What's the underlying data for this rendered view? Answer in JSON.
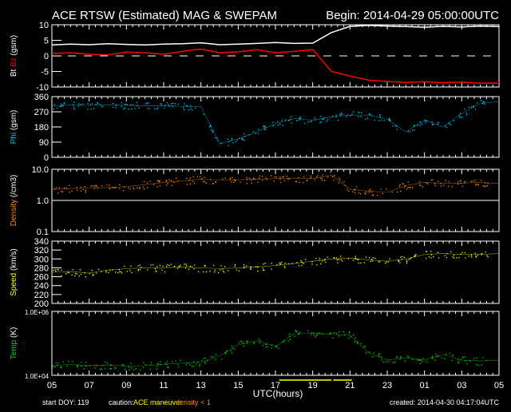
{
  "chart_data": {
    "type": "line",
    "title": "ACE RTSW (Estimated) MAG & SWEPAM",
    "begin": "Begin: 2014-04-29 05:00:00UTC",
    "xlabel": "UTC(hours)",
    "x_ticks": [
      "05",
      "07",
      "09",
      "11",
      "13",
      "15",
      "17",
      "19",
      "21",
      "23",
      "01",
      "03",
      "05"
    ],
    "x_hours": [
      5,
      6,
      7,
      8,
      9,
      10,
      11,
      12,
      13,
      14,
      15,
      16,
      17,
      18,
      19,
      20,
      21,
      22,
      23,
      24,
      25,
      26,
      27,
      28,
      29
    ],
    "footer": {
      "start_doy": "start DOY: 119",
      "caution": "caution:",
      "ace_maneuver": "ACE maneuver",
      "density_note": "density < 1",
      "created": "created: 2014-04-30 04:17:04UTC"
    },
    "colors": {
      "bt": "#ffffff",
      "bz": "#ff0000",
      "phi": "#00ccff",
      "density": "#ff8c00",
      "speed": "#ffff00",
      "temp": "#00dd00",
      "maneuver": "#ffff00"
    },
    "panels": [
      {
        "ylabel_parts": [
          "Bt",
          "Bz",
          "(gsm)"
        ],
        "scale": "linear",
        "ylim": [
          -10,
          10
        ],
        "y_ticks": [
          "10",
          "5",
          "0",
          "-5",
          "-10"
        ],
        "y_tick_values": [
          10,
          5,
          0,
          -5,
          -10
        ],
        "zero_line": true,
        "series": [
          {
            "name": "Bt",
            "values": [
              3.5,
              3.8,
              3.6,
              3.9,
              3.7,
              3.5,
              3.8,
              3.9,
              4.2,
              3.6,
              3.8,
              4.0,
              4.3,
              4.0,
              4.1,
              7.5,
              9.5,
              9.8,
              9.6,
              9.4,
              9.2,
              9.5,
              9.3,
              9.6,
              9.4
            ]
          },
          {
            "name": "Bz",
            "values": [
              0.8,
              1.0,
              0.5,
              0.3,
              1.2,
              1.0,
              0.5,
              1.5,
              2.2,
              1.0,
              1.3,
              2.0,
              1.0,
              1.5,
              2.0,
              -5,
              -6.5,
              -7.8,
              -8.2,
              -8.5,
              -8.3,
              -8.6,
              -8.4,
              -8.8,
              -8.7
            ]
          }
        ]
      },
      {
        "ylabel_parts": [
          "Phi",
          "(gsm)"
        ],
        "scale": "linear",
        "ylim": [
          0,
          360
        ],
        "y_ticks": [
          "360",
          "270",
          "180",
          "90",
          "0"
        ],
        "y_tick_values": [
          360,
          270,
          180,
          90,
          0
        ],
        "series": [
          {
            "name": "Phi",
            "values": [
              305,
              310,
              308,
              312,
              310,
              305,
              306,
              302,
              300,
              80,
              110,
              150,
              200,
              230,
              220,
              240,
              250,
              250,
              225,
              150,
              220,
              180,
              260,
              320,
              330
            ]
          }
        ]
      },
      {
        "ylabel_parts": [
          "Density",
          "(/cm3)"
        ],
        "scale": "log",
        "ylim": [
          0.1,
          10
        ],
        "y_ticks": [
          "10.0",
          "1.0",
          "0.1"
        ],
        "y_tick_values": [
          10,
          1,
          0.1
        ],
        "ref_line": 1,
        "series": [
          {
            "name": "Density",
            "values": [
              2.2,
              2.4,
              2.5,
              2.6,
              2.8,
              3.2,
              3.8,
              4.2,
              4.8,
              4.5,
              4.6,
              4.8,
              5.0,
              5.2,
              5.0,
              6.5,
              2.3,
              2.0,
              1.8,
              3.0,
              3.8,
              3.5,
              3.6,
              3.8,
              3.5
            ]
          }
        ]
      },
      {
        "ylabel_parts": [
          "Speed",
          "(km/s)"
        ],
        "scale": "linear",
        "ylim": [
          200,
          340
        ],
        "y_ticks": [
          "340",
          "320",
          "300",
          "280",
          "260",
          "240",
          "220",
          "200"
        ],
        "y_tick_values": [
          340,
          320,
          300,
          280,
          260,
          240,
          220,
          200
        ],
        "series": [
          {
            "name": "Speed",
            "values": [
              270,
              272,
              268,
              275,
              278,
              280,
              280,
              282,
              280,
              278,
              280,
              282,
              285,
              290,
              295,
              300,
              302,
              298,
              295,
              300,
              310,
              312,
              310,
              310,
              312
            ]
          }
        ]
      },
      {
        "ylabel_parts": [
          "Temp",
          "(K)"
        ],
        "scale": "log",
        "ylim": [
          10000,
          1000000
        ],
        "y_ticks": [
          "1.0E+06",
          "1.0E+04"
        ],
        "y_tick_values": [
          1000000,
          10000
        ],
        "series": [
          {
            "name": "Temp",
            "values": [
              20000,
              22000,
              20000,
              21000,
              19000,
              20000,
              22000,
              24000,
              25000,
              40000,
              90000,
              120000,
              80000,
              200000,
              210000,
              190000,
              180000,
              50000,
              30000,
              35000,
              30000,
              45000,
              30000,
              28000,
              30000
            ]
          }
        ]
      }
    ],
    "maneuver_intervals_hours": [
      [
        17.2,
        20
      ],
      [
        20.1,
        21.1
      ]
    ]
  }
}
